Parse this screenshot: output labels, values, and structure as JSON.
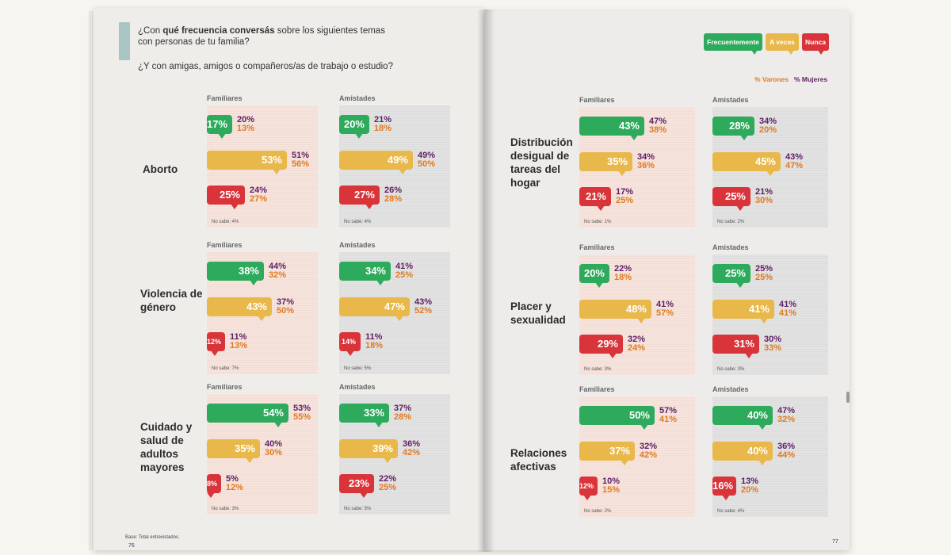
{
  "left_page": {
    "question_prefix": "¿Con ",
    "question_bold": "qué frecuencia conversás",
    "question_suffix": " sobre los siguientes temas con personas de tu familia?",
    "question2": "¿Y con amigas, amigos o compañeros/as de trabajo o estudio?",
    "base_note": "Base: Total entrevistados.",
    "page_number": "76"
  },
  "right_page": {
    "legend": {
      "frecuentemente": "Frecuentemente",
      "a_veces": "A veces",
      "nunca": "Nunca",
      "varones": "% Varones",
      "mujeres": "% Mujeres"
    },
    "page_number": "77"
  },
  "colors": {
    "green": "#2eaa5c",
    "yellow": "#e9b84a",
    "red": "#d8343a",
    "mujeres": "#5e1f62",
    "varones": "#e07a1f"
  },
  "labels": {
    "familiares": "Familiares",
    "amistades": "Amistades"
  },
  "topics": [
    {
      "name": "Aborto",
      "fam": {
        "rows": [
          {
            "total": "17%",
            "value": 17,
            "m": "20%",
            "v": "13%"
          },
          {
            "total": "53%",
            "value": 53,
            "m": "51%",
            "v": "56%"
          },
          {
            "total": "25%",
            "value": 25,
            "m": "24%",
            "v": "27%"
          }
        ],
        "nosabe": "No sabe: 4%"
      },
      "ami": {
        "rows": [
          {
            "total": "20%",
            "value": 20,
            "m": "21%",
            "v": "18%"
          },
          {
            "total": "49%",
            "value": 49,
            "m": "49%",
            "v": "50%"
          },
          {
            "total": "27%",
            "value": 27,
            "m": "26%",
            "v": "28%"
          }
        ],
        "nosabe": "No sabe: 4%"
      }
    },
    {
      "name": "Violencia de género",
      "fam": {
        "rows": [
          {
            "total": "38%",
            "value": 38,
            "m": "44%",
            "v": "32%"
          },
          {
            "total": "43%",
            "value": 43,
            "m": "37%",
            "v": "50%"
          },
          {
            "total": "12%",
            "value": 12,
            "m": "11%",
            "v": "13%"
          }
        ],
        "nosabe": "No sabe: 7%"
      },
      "ami": {
        "rows": [
          {
            "total": "34%",
            "value": 34,
            "m": "41%",
            "v": "25%"
          },
          {
            "total": "47%",
            "value": 47,
            "m": "43%",
            "v": "52%"
          },
          {
            "total": "14%",
            "value": 14,
            "m": "11%",
            "v": "18%"
          }
        ],
        "nosabe": "No sabe: 5%"
      }
    },
    {
      "name": "Cuidado y salud de adultos mayores",
      "fam": {
        "rows": [
          {
            "total": "54%",
            "value": 54,
            "m": "53%",
            "v": "55%"
          },
          {
            "total": "35%",
            "value": 35,
            "m": "40%",
            "v": "30%"
          },
          {
            "total": "8%",
            "value": 8,
            "m": "5%",
            "v": "12%"
          }
        ],
        "nosabe": "No sabe: 3%"
      },
      "ami": {
        "rows": [
          {
            "total": "33%",
            "value": 33,
            "m": "37%",
            "v": "28%"
          },
          {
            "total": "39%",
            "value": 39,
            "m": "36%",
            "v": "42%"
          },
          {
            "total": "23%",
            "value": 23,
            "m": "22%",
            "v": "25%"
          }
        ],
        "nosabe": "No sabe: 5%"
      }
    },
    {
      "name": "Distribución desigual de tareas del hogar",
      "fam": {
        "rows": [
          {
            "total": "43%",
            "value": 43,
            "m": "47%",
            "v": "38%"
          },
          {
            "total": "35%",
            "value": 35,
            "m": "34%",
            "v": "36%"
          },
          {
            "total": "21%",
            "value": 21,
            "m": "17%",
            "v": "25%"
          }
        ],
        "nosabe": "No sabe: 1%"
      },
      "ami": {
        "rows": [
          {
            "total": "28%",
            "value": 28,
            "m": "34%",
            "v": "20%"
          },
          {
            "total": "45%",
            "value": 45,
            "m": "43%",
            "v": "47%"
          },
          {
            "total": "25%",
            "value": 25,
            "m": "21%",
            "v": "30%"
          }
        ],
        "nosabe": "No sabe: 2%"
      }
    },
    {
      "name": "Placer y sexualidad",
      "fam": {
        "rows": [
          {
            "total": "20%",
            "value": 20,
            "m": "22%",
            "v": "18%"
          },
          {
            "total": "48%",
            "value": 48,
            "m": "41%",
            "v": "57%"
          },
          {
            "total": "29%",
            "value": 29,
            "m": "32%",
            "v": "24%"
          }
        ],
        "nosabe": "No sabe: 3%"
      },
      "ami": {
        "rows": [
          {
            "total": "25%",
            "value": 25,
            "m": "25%",
            "v": "25%"
          },
          {
            "total": "41%",
            "value": 41,
            "m": "41%",
            "v": "41%"
          },
          {
            "total": "31%",
            "value": 31,
            "m": "30%",
            "v": "33%"
          }
        ],
        "nosabe": "No sabe: 3%"
      }
    },
    {
      "name": "Relaciones afectivas",
      "fam": {
        "rows": [
          {
            "total": "50%",
            "value": 50,
            "m": "57%",
            "v": "41%"
          },
          {
            "total": "37%",
            "value": 37,
            "m": "32%",
            "v": "42%"
          },
          {
            "total": "12%",
            "value": 12,
            "m": "10%",
            "v": "15%"
          }
        ],
        "nosabe": "No sabe: 2%"
      },
      "ami": {
        "rows": [
          {
            "total": "40%",
            "value": 40,
            "m": "47%",
            "v": "32%"
          },
          {
            "total": "40%",
            "value": 40,
            "m": "36%",
            "v": "44%"
          },
          {
            "total": "16%",
            "value": 16,
            "m": "13%",
            "v": "20%"
          }
        ],
        "nosabe": "No sabe: 4%"
      }
    }
  ]
}
